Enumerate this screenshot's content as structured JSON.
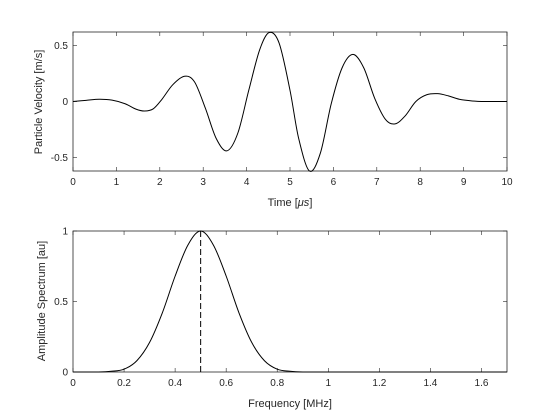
{
  "figure": {
    "background": "#ffffff",
    "line_color": "#000000",
    "axis_color": "#262626"
  },
  "chart_data": [
    {
      "type": "line",
      "xlabel_pre": "Time [",
      "xlabel_unit": "μs",
      "xlabel_post": "]",
      "ylabel": "Particle Velocity [m/s]",
      "xlim": [
        0,
        10
      ],
      "ylim": [
        -0.62,
        0.62
      ],
      "xticks": [
        0,
        1,
        2,
        3,
        4,
        5,
        6,
        7,
        8,
        9,
        10
      ],
      "xtick_labels": [
        "0",
        "1",
        "2",
        "3",
        "4",
        "5",
        "6",
        "7",
        "8",
        "9",
        "10"
      ],
      "yticks": [
        0.5,
        0,
        -0.5
      ],
      "ytick_labels": [
        "0.5",
        "0",
        "-0.5"
      ],
      "grid": false,
      "series": [
        {
          "x": [
            0,
            0.3,
            0.6,
            0.9,
            1.2,
            1.45,
            1.65,
            1.85,
            2.05,
            2.3,
            2.57,
            2.8,
            3.05,
            3.3,
            3.55,
            3.8,
            4.05,
            4.3,
            4.52,
            4.75,
            5.0,
            5.2,
            5.45,
            5.7,
            5.95,
            6.2,
            6.45,
            6.7,
            6.95,
            7.2,
            7.42,
            7.65,
            7.9,
            8.15,
            8.4,
            8.65,
            8.9,
            9.2,
            9.5,
            9.8,
            10.0
          ],
          "y": [
            0.0,
            0.01,
            0.02,
            0.012,
            -0.02,
            -0.068,
            -0.085,
            -0.065,
            0.02,
            0.15,
            0.225,
            0.175,
            -0.06,
            -0.33,
            -0.44,
            -0.28,
            0.1,
            0.46,
            0.615,
            0.52,
            0.1,
            -0.33,
            -0.62,
            -0.46,
            -0.02,
            0.3,
            0.42,
            0.3,
            0.03,
            -0.16,
            -0.2,
            -0.13,
            0.0,
            0.06,
            0.07,
            0.05,
            0.02,
            0.005,
            0.0,
            0.0,
            0.0
          ]
        }
      ]
    },
    {
      "type": "line",
      "xlabel": "Frequency [MHz]",
      "ylabel": "Amplitude Spectrum [au]",
      "xlim": [
        0,
        1.7
      ],
      "ylim": [
        0,
        1
      ],
      "xticks": [
        0,
        0.2,
        0.4,
        0.6,
        0.8,
        1.0,
        1.2,
        1.4,
        1.6
      ],
      "xtick_labels": [
        "0",
        "0.2",
        "0.4",
        "0.6",
        "0.8",
        "1",
        "1.2",
        "1.4",
        "1.6"
      ],
      "yticks": [
        0,
        0.5,
        1
      ],
      "ytick_labels": [
        "0",
        "0.5",
        "1"
      ],
      "grid": false,
      "series": [
        {
          "x": [
            0,
            0.1,
            0.15,
            0.2,
            0.25,
            0.3,
            0.35,
            0.4,
            0.45,
            0.5,
            0.55,
            0.6,
            0.65,
            0.7,
            0.75,
            0.8,
            0.85,
            0.9,
            1.0,
            1.2,
            1.4,
            1.6,
            1.7
          ],
          "y": [
            0,
            0.0,
            0.005,
            0.02,
            0.08,
            0.21,
            0.42,
            0.68,
            0.9,
            1.0,
            0.9,
            0.68,
            0.42,
            0.21,
            0.08,
            0.02,
            0.005,
            0.0,
            0,
            0,
            0,
            0,
            0
          ]
        }
      ],
      "peak_line": {
        "x": 0.5,
        "style": "dashed"
      }
    }
  ]
}
